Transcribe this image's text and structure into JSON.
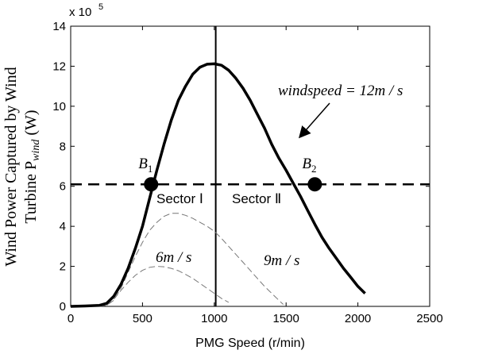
{
  "chart_data": {
    "type": "line",
    "title": "",
    "xlabel": "PMG Speed (r/min)",
    "ylabel_line1": "Wind Power Captured by Wind",
    "ylabel_line2_prefix": "Turbine P",
    "ylabel_line2_subscript": "wind",
    "ylabel_line2_suffix": " (W)",
    "y_multiplier_label": "x 10",
    "y_multiplier_exponent": "5",
    "xlim": [
      0,
      2500
    ],
    "ylim": [
      0,
      14
    ],
    "x_ticks": [
      "0",
      "500",
      "1000",
      "1500",
      "2000",
      "2500"
    ],
    "y_ticks": [
      "0",
      "2",
      "4",
      "6",
      "8",
      "10",
      "12",
      "14"
    ],
    "grid": false,
    "series": [
      {
        "name": "windspeed = 12m/s",
        "style": "solid-thick",
        "color": "#000000",
        "points": [
          [
            0,
            0
          ],
          [
            100,
            0.02
          ],
          [
            200,
            0.05
          ],
          [
            250,
            0.15
          ],
          [
            300,
            0.5
          ],
          [
            350,
            1.1
          ],
          [
            400,
            1.9
          ],
          [
            450,
            2.9
          ],
          [
            500,
            4.0
          ],
          [
            550,
            5.4
          ],
          [
            600,
            6.8
          ],
          [
            650,
            8.1
          ],
          [
            700,
            9.3
          ],
          [
            750,
            10.3
          ],
          [
            800,
            11.0
          ],
          [
            850,
            11.6
          ],
          [
            900,
            11.95
          ],
          [
            950,
            12.1
          ],
          [
            1000,
            12.12
          ],
          [
            1050,
            12.05
          ],
          [
            1100,
            11.8
          ],
          [
            1150,
            11.4
          ],
          [
            1200,
            10.9
          ],
          [
            1250,
            10.3
          ],
          [
            1300,
            9.6
          ],
          [
            1350,
            8.9
          ],
          [
            1400,
            8.1
          ],
          [
            1450,
            7.4
          ],
          [
            1500,
            6.8
          ],
          [
            1550,
            6.15
          ],
          [
            1600,
            5.5
          ],
          [
            1650,
            4.8
          ],
          [
            1700,
            4.1
          ],
          [
            1750,
            3.45
          ],
          [
            1800,
            2.9
          ],
          [
            1850,
            2.4
          ],
          [
            1900,
            1.9
          ],
          [
            1950,
            1.45
          ],
          [
            2000,
            1.0
          ],
          [
            2050,
            0.65
          ]
        ]
      },
      {
        "name": "9m/s",
        "style": "dashed-thin",
        "color": "#777777",
        "points": [
          [
            200,
            0
          ],
          [
            250,
            0.05
          ],
          [
            300,
            0.3
          ],
          [
            350,
            0.9
          ],
          [
            400,
            1.7
          ],
          [
            450,
            2.5
          ],
          [
            500,
            3.2
          ],
          [
            550,
            3.8
          ],
          [
            600,
            4.2
          ],
          [
            650,
            4.5
          ],
          [
            700,
            4.65
          ],
          [
            750,
            4.65
          ],
          [
            800,
            4.55
          ],
          [
            850,
            4.4
          ],
          [
            900,
            4.2
          ],
          [
            950,
            4.0
          ],
          [
            1000,
            3.75
          ],
          [
            1050,
            3.4
          ],
          [
            1100,
            3.0
          ],
          [
            1150,
            2.6
          ],
          [
            1200,
            2.2
          ],
          [
            1250,
            1.8
          ],
          [
            1300,
            1.4
          ],
          [
            1350,
            1.0
          ],
          [
            1400,
            0.65
          ],
          [
            1450,
            0.3
          ],
          [
            1480,
            0.1
          ]
        ]
      },
      {
        "name": "6m/s",
        "style": "dashed-thin",
        "color": "#777777",
        "points": [
          [
            250,
            0.05
          ],
          [
            300,
            0.35
          ],
          [
            350,
            0.8
          ],
          [
            400,
            1.2
          ],
          [
            450,
            1.55
          ],
          [
            500,
            1.8
          ],
          [
            550,
            1.95
          ],
          [
            600,
            2.0
          ],
          [
            650,
            1.98
          ],
          [
            700,
            1.9
          ],
          [
            750,
            1.78
          ],
          [
            800,
            1.6
          ],
          [
            850,
            1.4
          ],
          [
            900,
            1.15
          ],
          [
            950,
            0.9
          ],
          [
            1000,
            0.65
          ],
          [
            1050,
            0.4
          ],
          [
            1100,
            0.2
          ]
        ]
      }
    ],
    "reference_lines": [
      {
        "orientation": "horizontal",
        "y": 6.1,
        "style": "dashed-thick"
      },
      {
        "orientation": "vertical",
        "x": 1010,
        "style": "solid"
      }
    ],
    "markers": [
      {
        "x": 560,
        "y": 6.1,
        "label_main": "B",
        "label_sub": "1"
      },
      {
        "x": 1700,
        "y": 6.1,
        "label_main": "B",
        "label_sub": "2"
      }
    ],
    "annotations": {
      "windspeed_label": "windspeed = 12m / s",
      "label_9": "9m / s",
      "label_6": "6m / s",
      "sector1": "Sector Ⅰ",
      "sector2": "Sector Ⅱ"
    }
  }
}
